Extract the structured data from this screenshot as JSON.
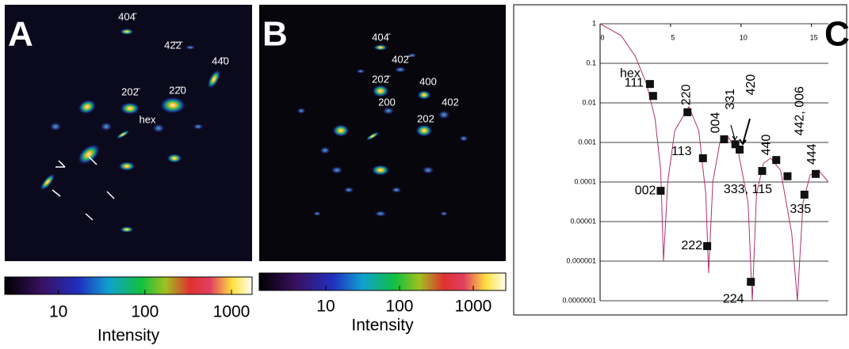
{
  "panels": [
    {
      "label": "A",
      "reflections": [
        "404̄",
        "42̄2̄",
        "44̄0",
        "202̄",
        "22̄0",
        "hex"
      ],
      "colorbar": {
        "log_scale": true,
        "xlim": [
          2.4,
          1730
        ],
        "xticks": [
          10,
          100,
          1000
        ],
        "label": "Intensity"
      }
    },
    {
      "label": "B",
      "reflections": [
        "404̄",
        "402̄",
        "202̄",
        "400",
        "200",
        "402",
        "202"
      ],
      "colorbar": {
        "log_scale": true,
        "xlim": [
          1.25,
          2760
        ],
        "xticks": [
          10,
          100,
          1000
        ],
        "label": "Intensity"
      }
    }
  ],
  "chart_data": {
    "type": "scatter",
    "label": "C",
    "log_scale_y": true,
    "grid": true,
    "xlim": [
      0,
      16.2
    ],
    "xticks": [
      0,
      5,
      10,
      15
    ],
    "ylim": [
      1e-07,
      1
    ],
    "yticks": [
      {
        "value": 1,
        "label": "1"
      },
      {
        "value": 0.1,
        "label": "0.1"
      },
      {
        "value": 0.01,
        "label": "0.01"
      },
      {
        "value": 0.001,
        "label": "0.001"
      },
      {
        "value": 0.0001,
        "label": "0.0001"
      },
      {
        "value": 1e-05,
        "label": "0.00001"
      },
      {
        "value": 1e-06,
        "label": "0.000001"
      },
      {
        "value": 1e-07,
        "label": "0.0000001"
      }
    ],
    "series": [
      {
        "type": "line",
        "color": "#b03070",
        "x": [
          0,
          1.5,
          2.5,
          3.3,
          3.9,
          4.3,
          4.5,
          4.8,
          5.3,
          6.3,
          7.0,
          7.5,
          7.7,
          8.0,
          8.5,
          9.0,
          9.8,
          10.5,
          10.8,
          11.1,
          11.6,
          12.1,
          12.8,
          13.6,
          14.0,
          14.4,
          14.9,
          15.5,
          16.2
        ],
        "values": [
          1,
          0.5,
          0.15,
          0.03,
          0.004,
          0.0002,
          1e-06,
          0.0001,
          0.002,
          0.008,
          0.002,
          5e-05,
          5e-07,
          0.0001,
          0.001,
          0.0015,
          0.0006,
          3e-05,
          1e-07,
          5e-05,
          0.0003,
          0.0004,
          0.0002,
          5e-06,
          1e-07,
          3e-05,
          0.00015,
          0.0002,
          0.0001
        ]
      },
      {
        "type": "scatter",
        "color": "#111111",
        "x": [
          3.54,
          3.76,
          4.3,
          6.2,
          7.3,
          7.6,
          8.8,
          9.6,
          9.9,
          10.7,
          13.3,
          11.5,
          12.5,
          15.3,
          14.5
        ],
        "values": [
          0.03,
          0.015,
          6e-05,
          0.0058,
          0.0004,
          2.4e-06,
          0.0012,
          0.0009,
          0.00066,
          3e-07,
          0.00014,
          0.00019,
          0.00036,
          0.00016,
          4.8e-05
        ],
        "labels": [
          "hex",
          "111",
          "002",
          "220",
          "113",
          "222",
          "004",
          "331",
          "420",
          "224",
          "333, 115",
          "440",
          "442, 006",
          "444",
          "335"
        ]
      }
    ]
  }
}
